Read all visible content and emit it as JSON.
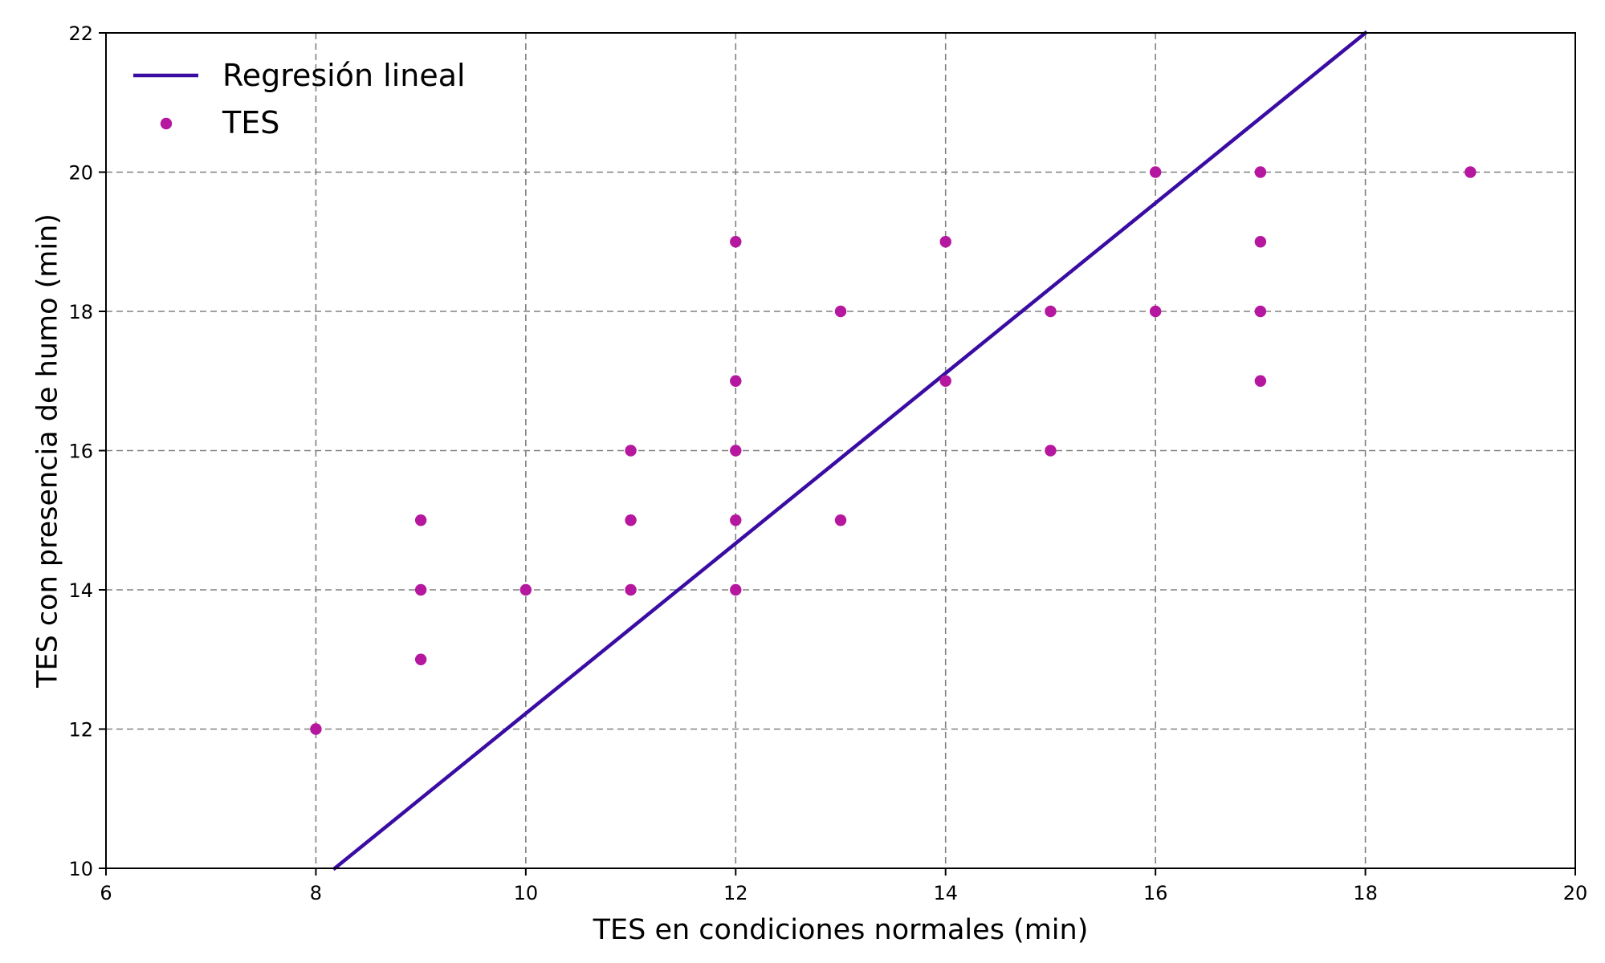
{
  "chart_data": {
    "type": "scatter",
    "xlabel": "TES en condiciones normales (min)",
    "ylabel": "TES con presencia de humo (min)",
    "xlim": [
      6,
      20
    ],
    "ylim": [
      10,
      22
    ],
    "x_ticks": [
      "6",
      "8",
      "10",
      "12",
      "14",
      "16",
      "18",
      "20"
    ],
    "y_ticks": [
      "10",
      "12",
      "14",
      "16",
      "18",
      "20",
      "22"
    ],
    "grid": true,
    "legend": {
      "placement": "top-left",
      "entries": [
        {
          "label": "Regresión lineal",
          "kind": "line"
        },
        {
          "label": "TES",
          "kind": "marker"
        }
      ]
    },
    "regression": {
      "name": "Regresión lineal",
      "color": "#3a0ca3",
      "x": [
        8.18,
        18.0
      ],
      "y": [
        10.0,
        22.0
      ]
    },
    "series": [
      {
        "name": "TES",
        "color": "#b5179e",
        "points": [
          [
            8,
            12
          ],
          [
            9,
            13
          ],
          [
            9,
            14
          ],
          [
            9,
            15
          ],
          [
            10,
            14
          ],
          [
            11,
            14
          ],
          [
            11,
            15
          ],
          [
            11,
            16
          ],
          [
            12,
            14
          ],
          [
            12,
            15
          ],
          [
            12,
            16
          ],
          [
            12,
            17
          ],
          [
            12,
            19
          ],
          [
            13,
            15
          ],
          [
            13,
            18
          ],
          [
            14,
            17
          ],
          [
            14,
            19
          ],
          [
            15,
            16
          ],
          [
            15,
            18
          ],
          [
            16,
            18
          ],
          [
            16,
            20
          ],
          [
            17,
            17
          ],
          [
            17,
            18
          ],
          [
            17,
            19
          ],
          [
            17,
            20
          ],
          [
            19,
            20
          ]
        ]
      }
    ]
  }
}
